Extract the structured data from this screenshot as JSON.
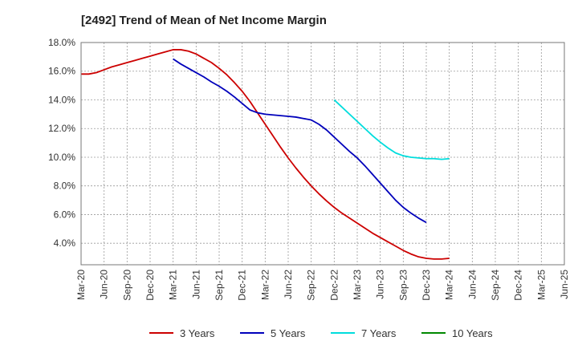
{
  "chart_data": {
    "type": "line",
    "title": "[2492]  Trend of Mean of Net Income Margin",
    "xlabel": "",
    "ylabel": "",
    "x_ticks": [
      "Mar-20",
      "Jun-20",
      "Sep-20",
      "Dec-20",
      "Mar-21",
      "Jun-21",
      "Sep-21",
      "Dec-21",
      "Mar-22",
      "Jun-22",
      "Sep-22",
      "Dec-22",
      "Mar-23",
      "Jun-23",
      "Sep-23",
      "Dec-23",
      "Mar-24",
      "Jun-24",
      "Sep-24",
      "Dec-24",
      "Mar-25",
      "Jun-25"
    ],
    "y_ticks": [
      4.0,
      6.0,
      8.0,
      10.0,
      12.0,
      14.0,
      16.0,
      18.0
    ],
    "y_tick_labels": [
      "4.0%",
      "6.0%",
      "8.0%",
      "10.0%",
      "12.0%",
      "14.0%",
      "16.0%",
      "18.0%"
    ],
    "ylim": [
      2.5,
      18.0
    ],
    "grid": true,
    "legend_position": "bottom",
    "series": [
      {
        "name": "3 Years",
        "color": "#cc0000",
        "points": [
          [
            "Mar-20",
            15.8
          ],
          [
            "Apr-20",
            15.8
          ],
          [
            "May-20",
            15.9
          ],
          [
            "Jun-20",
            16.1
          ],
          [
            "Jul-20",
            16.3
          ],
          [
            "Aug-20",
            16.45
          ],
          [
            "Sep-20",
            16.6
          ],
          [
            "Oct-20",
            16.75
          ],
          [
            "Nov-20",
            16.9
          ],
          [
            "Dec-20",
            17.05
          ],
          [
            "Jan-21",
            17.2
          ],
          [
            "Feb-21",
            17.35
          ],
          [
            "Mar-21",
            17.5
          ],
          [
            "Apr-21",
            17.5
          ],
          [
            "May-21",
            17.4
          ],
          [
            "Jun-21",
            17.2
          ],
          [
            "Jul-21",
            16.9
          ],
          [
            "Aug-21",
            16.6
          ],
          [
            "Sep-21",
            16.2
          ],
          [
            "Oct-21",
            15.75
          ],
          [
            "Nov-21",
            15.2
          ],
          [
            "Dec-21",
            14.6
          ],
          [
            "Jan-22",
            13.9
          ],
          [
            "Feb-22",
            13.1
          ],
          [
            "Mar-22",
            12.3
          ],
          [
            "Apr-22",
            11.5
          ],
          [
            "May-22",
            10.7
          ],
          [
            "Jun-22",
            9.95
          ],
          [
            "Jul-22",
            9.25
          ],
          [
            "Aug-22",
            8.6
          ],
          [
            "Sep-22",
            8.0
          ],
          [
            "Oct-22",
            7.45
          ],
          [
            "Nov-22",
            6.95
          ],
          [
            "Dec-22",
            6.5
          ],
          [
            "Jan-23",
            6.1
          ],
          [
            "Feb-23",
            5.75
          ],
          [
            "Mar-23",
            5.4
          ],
          [
            "Apr-23",
            5.05
          ],
          [
            "May-23",
            4.7
          ],
          [
            "Jun-23",
            4.4
          ],
          [
            "Jul-23",
            4.1
          ],
          [
            "Aug-23",
            3.8
          ],
          [
            "Sep-23",
            3.5
          ],
          [
            "Oct-23",
            3.25
          ],
          [
            "Nov-23",
            3.05
          ],
          [
            "Dec-23",
            2.95
          ],
          [
            "Jan-24",
            2.9
          ],
          [
            "Feb-24",
            2.9
          ],
          [
            "Mar-24",
            2.95
          ]
        ]
      },
      {
        "name": "5 Years",
        "color": "#0000bb",
        "points": [
          [
            "Mar-21",
            16.85
          ],
          [
            "Apr-21",
            16.5
          ],
          [
            "May-21",
            16.2
          ],
          [
            "Jun-21",
            15.9
          ],
          [
            "Jul-21",
            15.6
          ],
          [
            "Aug-21",
            15.25
          ],
          [
            "Sep-21",
            14.95
          ],
          [
            "Oct-21",
            14.6
          ],
          [
            "Nov-21",
            14.2
          ],
          [
            "Dec-21",
            13.75
          ],
          [
            "Jan-22",
            13.3
          ],
          [
            "Feb-22",
            13.1
          ],
          [
            "Mar-22",
            13.0
          ],
          [
            "Apr-22",
            12.95
          ],
          [
            "May-22",
            12.9
          ],
          [
            "Jun-22",
            12.85
          ],
          [
            "Jul-22",
            12.8
          ],
          [
            "Aug-22",
            12.7
          ],
          [
            "Sep-22",
            12.6
          ],
          [
            "Oct-22",
            12.3
          ],
          [
            "Nov-22",
            11.9
          ],
          [
            "Dec-22",
            11.4
          ],
          [
            "Jan-23",
            10.9
          ],
          [
            "Feb-23",
            10.4
          ],
          [
            "Mar-23",
            9.95
          ],
          [
            "Apr-23",
            9.4
          ],
          [
            "May-23",
            8.8
          ],
          [
            "Jun-23",
            8.2
          ],
          [
            "Jul-23",
            7.6
          ],
          [
            "Aug-23",
            7.0
          ],
          [
            "Sep-23",
            6.5
          ],
          [
            "Oct-23",
            6.1
          ],
          [
            "Nov-23",
            5.75
          ],
          [
            "Dec-23",
            5.45
          ]
        ]
      },
      {
        "name": "7 Years",
        "color": "#00dddd",
        "points": [
          [
            "Dec-22",
            14.0
          ],
          [
            "Jan-23",
            13.5
          ],
          [
            "Feb-23",
            13.0
          ],
          [
            "Mar-23",
            12.5
          ],
          [
            "Apr-23",
            12.0
          ],
          [
            "May-23",
            11.5
          ],
          [
            "Jun-23",
            11.05
          ],
          [
            "Jul-23",
            10.65
          ],
          [
            "Aug-23",
            10.3
          ],
          [
            "Sep-23",
            10.1
          ],
          [
            "Oct-23",
            10.0
          ],
          [
            "Nov-23",
            9.95
          ],
          [
            "Dec-23",
            9.9
          ],
          [
            "Jan-24",
            9.9
          ],
          [
            "Feb-24",
            9.85
          ],
          [
            "Mar-24",
            9.9
          ]
        ]
      },
      {
        "name": "10 Years",
        "color": "#008800",
        "points": []
      }
    ]
  }
}
